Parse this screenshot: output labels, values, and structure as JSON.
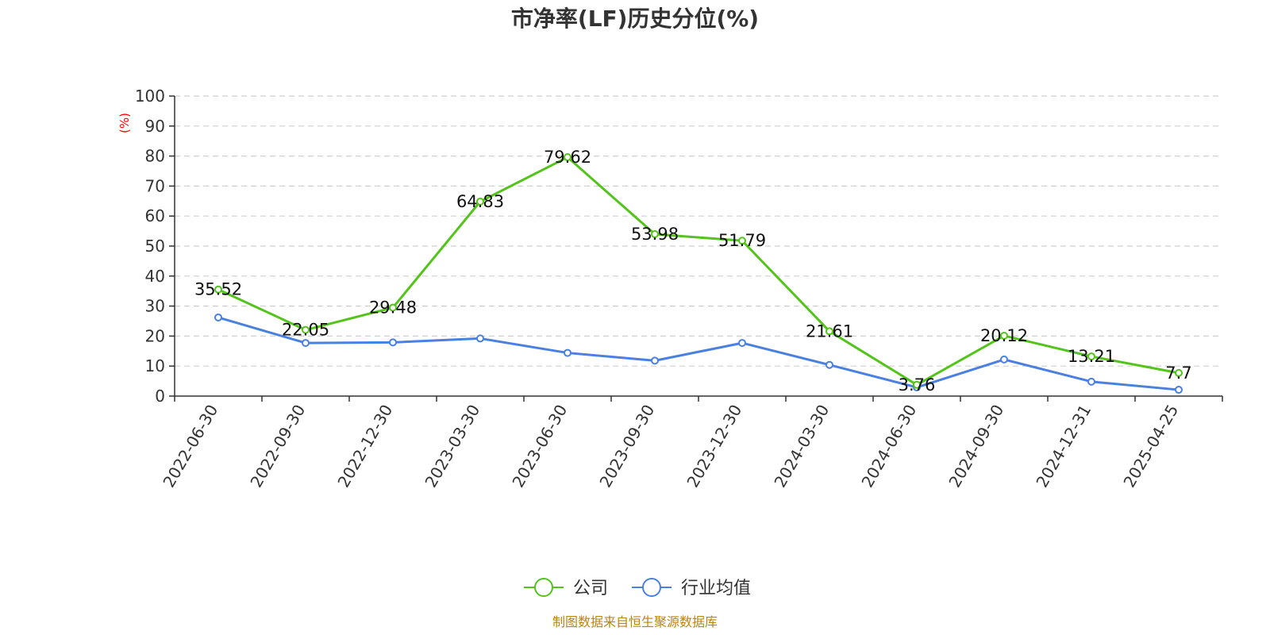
{
  "chart_data": {
    "type": "line",
    "title": "市净率(LF)历史分位(%)",
    "ylabel": "(%)",
    "xlabel": "",
    "ylim": [
      0,
      100
    ],
    "yticks": [
      0,
      10,
      20,
      30,
      40,
      50,
      60,
      70,
      80,
      90,
      100
    ],
    "grid": true,
    "legend_position": "bottom-center",
    "categories": [
      "2022-06-30",
      "2022-09-30",
      "2022-12-30",
      "2023-03-30",
      "2023-06-30",
      "2023-09-30",
      "2023-12-30",
      "2024-03-30",
      "2024-06-30",
      "2024-09-30",
      "2024-12-31",
      "2025-04-25"
    ],
    "series": [
      {
        "name": "公司",
        "color": "#52c41a",
        "show_labels": true,
        "values": [
          35.52,
          22.05,
          29.48,
          64.83,
          79.62,
          53.98,
          51.79,
          21.61,
          3.76,
          20.12,
          13.21,
          7.7
        ]
      },
      {
        "name": "行业均值",
        "color": "#4a80e0",
        "show_labels": false,
        "values": [
          26.2,
          17.7,
          17.9,
          19.2,
          14.4,
          11.8,
          17.7,
          10.4,
          2.9,
          12.2,
          4.8,
          2.1
        ]
      }
    ],
    "source": "制图数据来自恒生聚源数据库"
  }
}
